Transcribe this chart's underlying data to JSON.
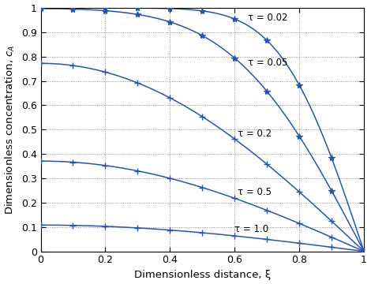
{
  "tau_values": [
    0.02,
    0.05,
    0.2,
    0.5,
    1.0
  ],
  "tau_labels": [
    "τ = 0.02",
    "τ = 0.05",
    "τ = 0.2",
    "τ = 0.5",
    "τ = 1.0"
  ],
  "label_xi": [
    0.64,
    0.64,
    0.61,
    0.61,
    0.6
  ],
  "label_c_offsets": [
    0.0,
    0.0,
    0.0,
    0.0,
    0.0
  ],
  "line_color": "#2255bb",
  "marker_star_taus": [
    0.02,
    0.05
  ],
  "marker_plus_taus": [
    0.2,
    0.5,
    1.0
  ],
  "xi_marker_points": [
    0.0,
    0.1,
    0.2,
    0.3,
    0.4,
    0.5,
    0.6,
    0.7,
    0.8,
    0.9,
    1.0
  ],
  "xlabel": "Dimensionless distance, ξ",
  "ylabel": "Dimensionless concentration, $c_A$",
  "xlim": [
    0,
    1
  ],
  "ylim": [
    0,
    1
  ],
  "xticks": [
    0,
    0.2,
    0.4,
    0.6,
    0.8,
    1.0
  ],
  "yticks": [
    0,
    0.1,
    0.2,
    0.3,
    0.4,
    0.5,
    0.6,
    0.7,
    0.8,
    0.9,
    1.0
  ],
  "n_terms": 100,
  "background_color": "#ffffff",
  "grid_color": "#555555",
  "grid_linestyle": ":"
}
